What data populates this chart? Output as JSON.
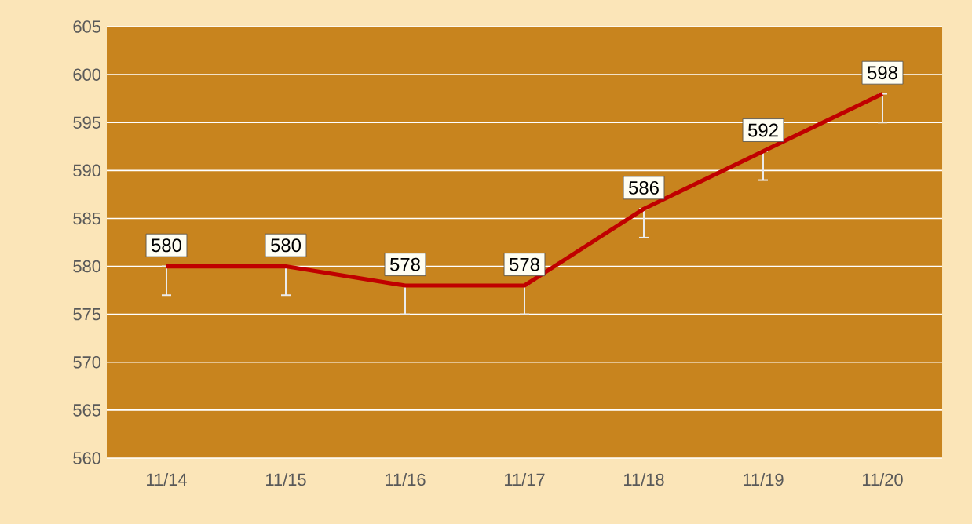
{
  "chart_data": {
    "type": "line",
    "categories": [
      "11/14",
      "11/15",
      "11/16",
      "11/17",
      "11/18",
      "11/19",
      "11/20"
    ],
    "series": [
      {
        "color": "#c00000",
        "values": [
          580,
          580,
          578,
          578,
          586,
          592,
          598
        ],
        "errors": [
          [
            577,
            580
          ],
          [
            577,
            580
          ],
          [
            575,
            578
          ],
          [
            575,
            578
          ],
          [
            583,
            586
          ],
          [
            589,
            592
          ],
          [
            595,
            598
          ]
        ]
      }
    ],
    "ylim": [
      560,
      605
    ],
    "yticks": [
      560,
      565,
      570,
      575,
      580,
      585,
      590,
      595,
      600,
      605
    ],
    "grid": "y",
    "data_labels": true,
    "marker": "none",
    "line_style": "solid"
  }
}
